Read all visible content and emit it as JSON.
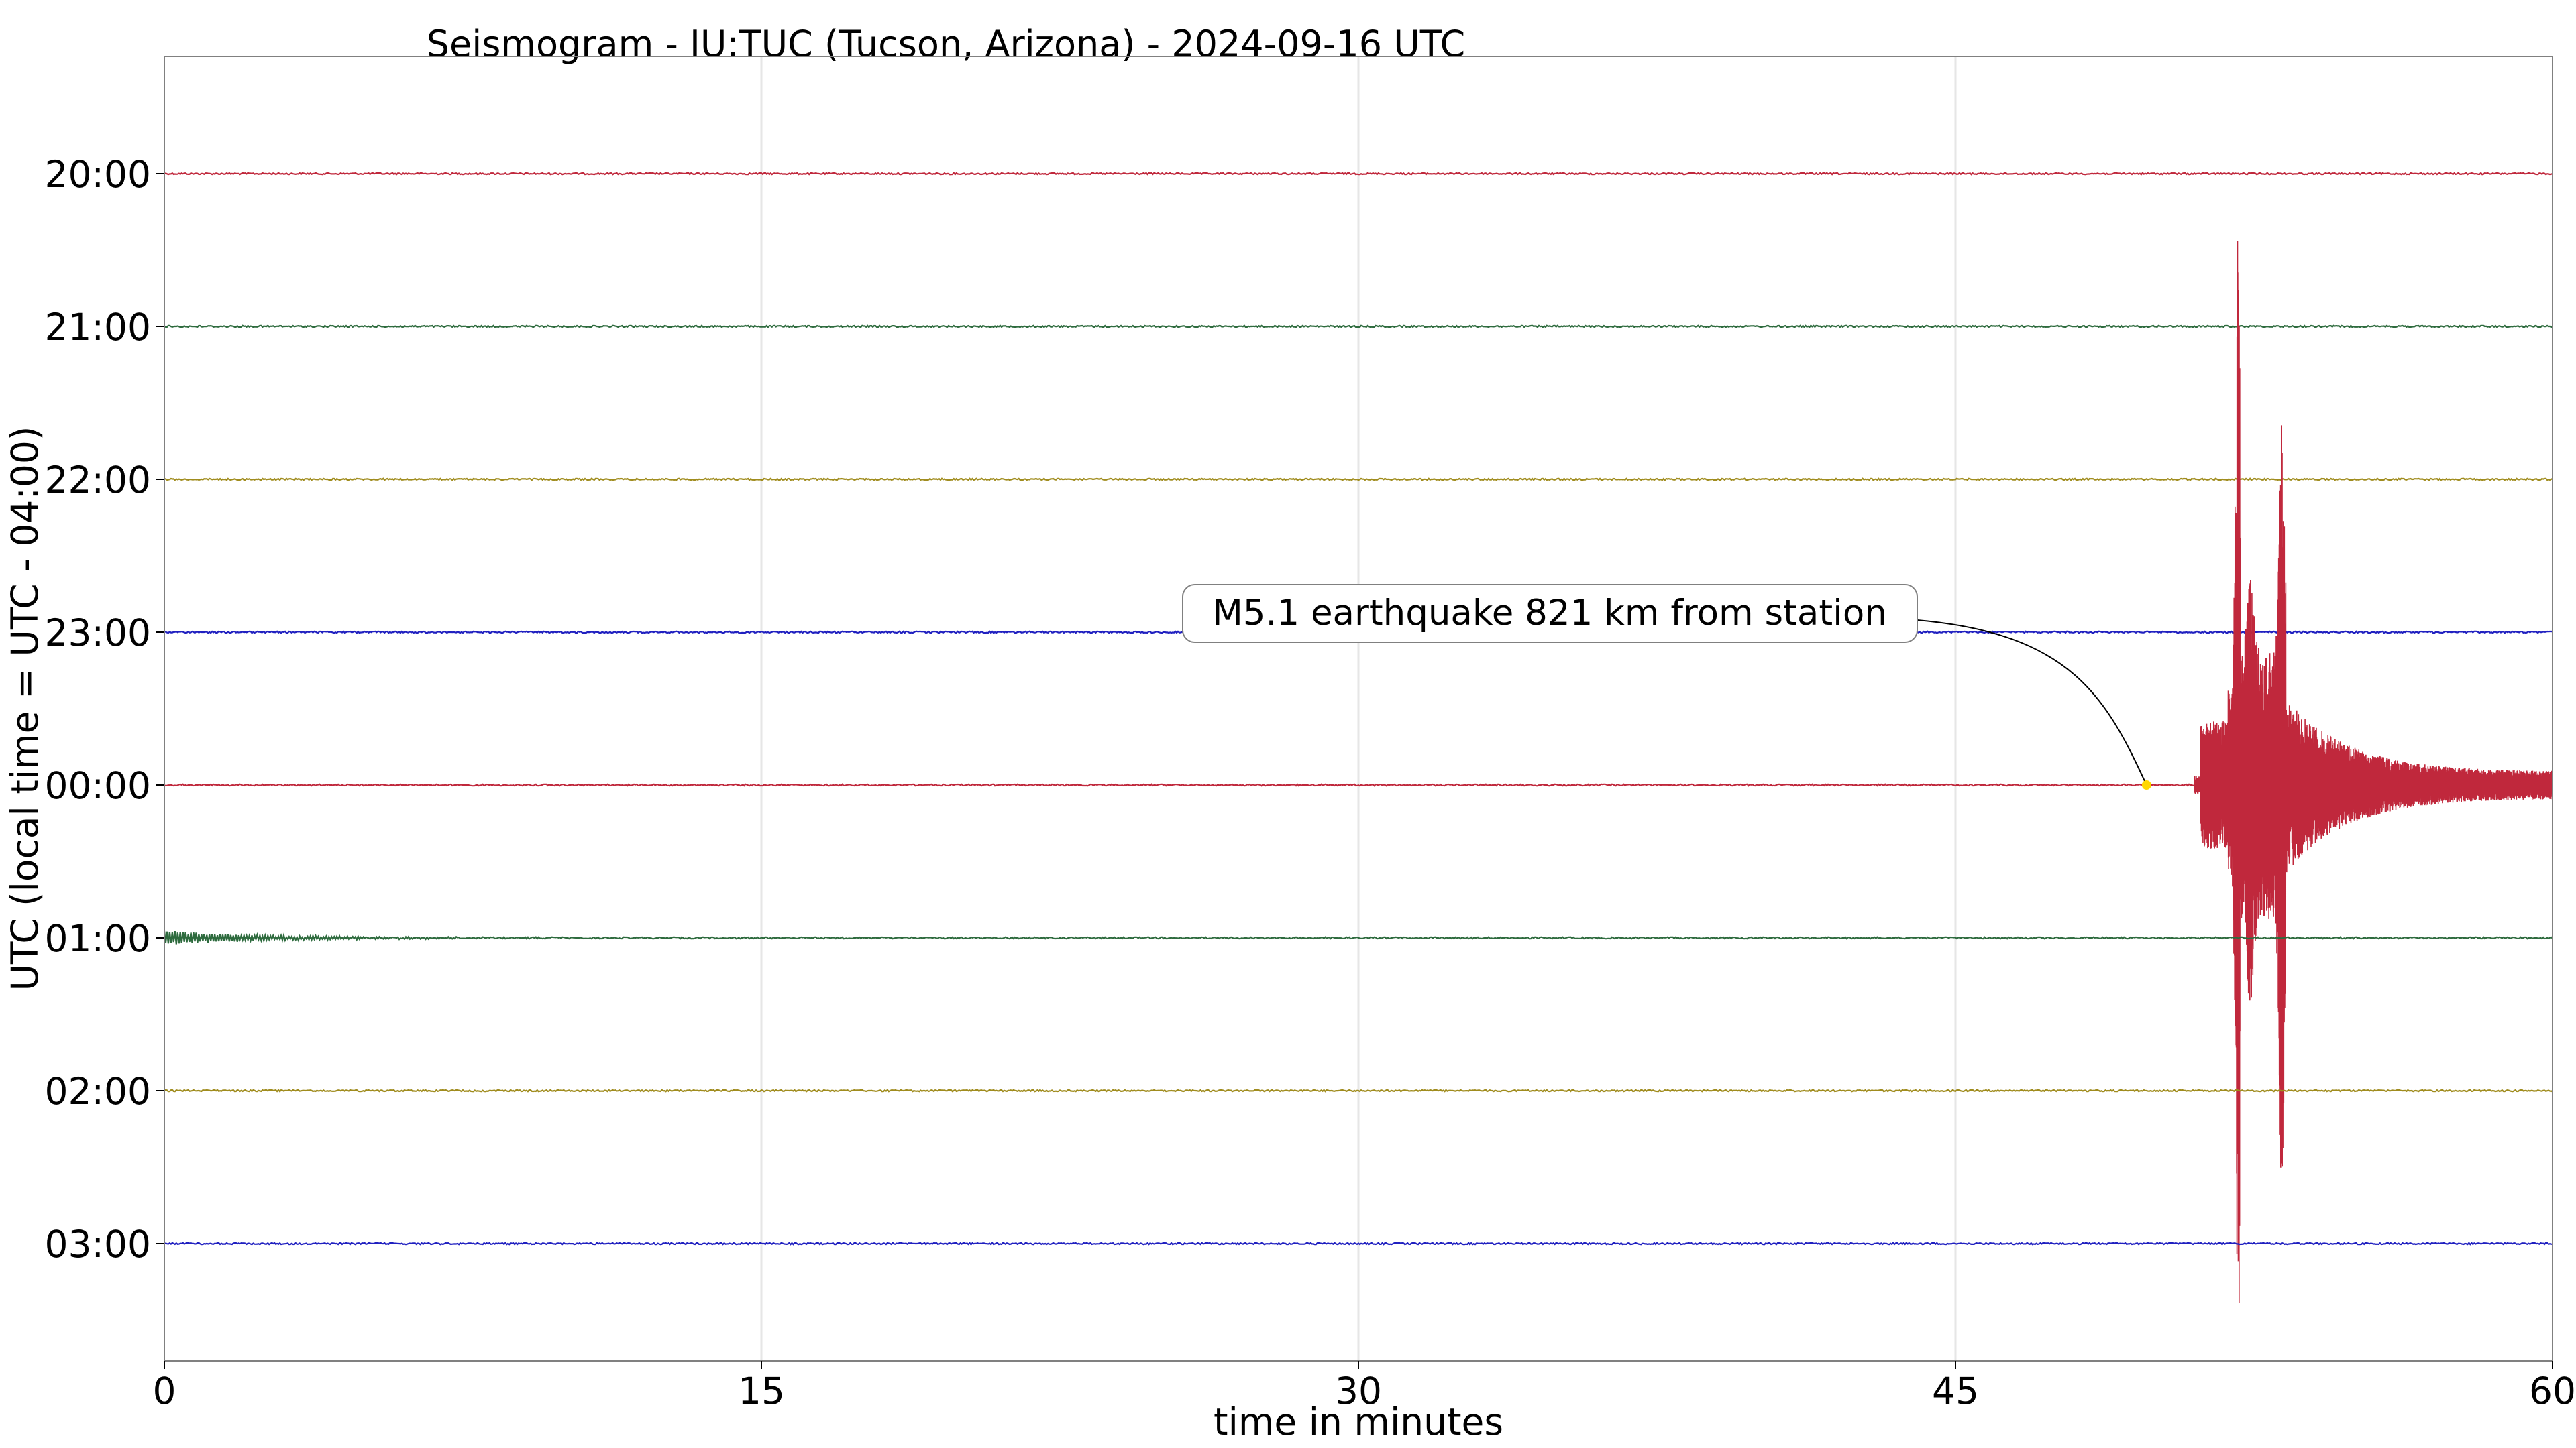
{
  "chart_data": {
    "type": "line",
    "title": "Seismogram - IU:TUC (Tucson, Arizona) - 2024-09-16 UTC",
    "xlabel": "time in minutes",
    "ylabel": "UTC (local time = UTC - 04:00)",
    "xlim": [
      0,
      60
    ],
    "x_ticks": [
      "0",
      "15",
      "30",
      "45",
      "60"
    ],
    "x_tick_values": [
      0,
      15,
      30,
      45,
      60
    ],
    "y_ticks": [
      "20:00",
      "21:00",
      "22:00",
      "23:00",
      "00:00",
      "01:00",
      "02:00",
      "03:00"
    ],
    "grid": "vertical at x ticks",
    "trace_colors": [
      "#c0283c",
      "#2e6b3e",
      "#a08c1e",
      "#2020c0"
    ],
    "series": [
      {
        "row": "20:00",
        "color": "#c0283c",
        "noise": 0.6
      },
      {
        "row": "21:00",
        "color": "#2e6b3e",
        "noise": 0.6
      },
      {
        "row": "22:00",
        "color": "#a08c1e",
        "noise": 0.6
      },
      {
        "row": "23:00",
        "color": "#2020c0",
        "noise": 0.6
      },
      {
        "row": "00:00",
        "color": "#c0283c",
        "noise": 0.6,
        "event": {
          "onset_min": 51.0,
          "peak_min": 52.1,
          "peak_amplitude_rows": 4.1,
          "secondary_peak_min": 53.2,
          "decay_end_min": 60
        }
      },
      {
        "row": "01:00",
        "color": "#2e6b3e",
        "noise": 0.6,
        "coda_from_previous_hour_until_min": 10
      },
      {
        "row": "02:00",
        "color": "#a08c1e",
        "noise": 0.6
      },
      {
        "row": "03:00",
        "color": "#2020c0",
        "noise": 0.6
      }
    ],
    "annotation": {
      "text": "M5.1 earthquake 821 km from station",
      "point_x_min": 49.8,
      "point_row": "00:00",
      "marker_color": "#ffd700"
    }
  }
}
